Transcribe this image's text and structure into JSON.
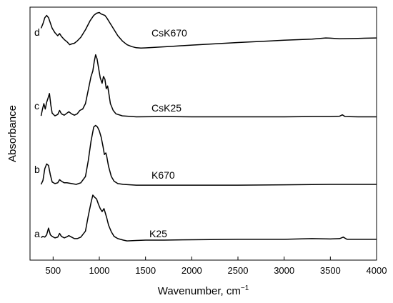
{
  "chart_data": {
    "type": "line",
    "xlabel": "Wavenumber, cm",
    "xlabel_superscript": "−1",
    "ylabel": "Absorbance",
    "xlim": [
      250,
      4000
    ],
    "y_units": "arbitrary, vertically offset spectra",
    "xticks": [
      500,
      1000,
      1500,
      2000,
      2500,
      3000,
      3500,
      4000
    ],
    "xtick_labels": [
      "500",
      "1000",
      "1500",
      "2000",
      "2500",
      "3000",
      "3500",
      "4000"
    ],
    "yticks_shown": false,
    "grid": false,
    "frame": "full box",
    "line_color": "#000000",
    "series": [
      {
        "name": "K25",
        "letter": "a",
        "points": [
          [
            370,
            0.035
          ],
          [
            390,
            0.05
          ],
          [
            410,
            0.04
          ],
          [
            430,
            0.07
          ],
          [
            450,
            0.16
          ],
          [
            470,
            0.07
          ],
          [
            490,
            0.05
          ],
          [
            520,
            0.03
          ],
          [
            550,
            0.04
          ],
          [
            570,
            0.09
          ],
          [
            590,
            0.05
          ],
          [
            620,
            0.03
          ],
          [
            650,
            0.045
          ],
          [
            670,
            0.06
          ],
          [
            700,
            0.04
          ],
          [
            730,
            0.02
          ],
          [
            760,
            0.02
          ],
          [
            800,
            0.04
          ],
          [
            850,
            0.12
          ],
          [
            880,
            0.32
          ],
          [
            910,
            0.5
          ],
          [
            930,
            0.6
          ],
          [
            950,
            0.57
          ],
          [
            970,
            0.55
          ],
          [
            990,
            0.48
          ],
          [
            1010,
            0.42
          ],
          [
            1030,
            0.38
          ],
          [
            1050,
            0.42
          ],
          [
            1060,
            0.38
          ],
          [
            1080,
            0.3
          ],
          [
            1100,
            0.2
          ],
          [
            1130,
            0.11
          ],
          [
            1160,
            0.05
          ],
          [
            1200,
            0.02
          ],
          [
            1260,
            0.0
          ],
          [
            1300,
            -0.01
          ],
          [
            1400,
            -0.005
          ],
          [
            1500,
            0.0
          ],
          [
            1700,
            0.0
          ],
          [
            2000,
            0.005
          ],
          [
            2500,
            0.01
          ],
          [
            3000,
            0.01
          ],
          [
            3300,
            0.02
          ],
          [
            3500,
            0.015
          ],
          [
            3600,
            0.02
          ],
          [
            3640,
            0.04
          ],
          [
            3680,
            0.01
          ],
          [
            3800,
            0.01
          ],
          [
            4000,
            0.01
          ]
        ]
      },
      {
        "name": "K670",
        "letter": "b",
        "points": [
          [
            370,
            0.0
          ],
          [
            390,
            0.05
          ],
          [
            410,
            0.2
          ],
          [
            430,
            0.26
          ],
          [
            450,
            0.24
          ],
          [
            470,
            0.12
          ],
          [
            490,
            0.03
          ],
          [
            520,
            0.01
          ],
          [
            550,
            0.02
          ],
          [
            570,
            0.06
          ],
          [
            590,
            0.04
          ],
          [
            620,
            0.02
          ],
          [
            650,
            0.02
          ],
          [
            700,
            0.01
          ],
          [
            750,
            0.0
          ],
          [
            800,
            0.02
          ],
          [
            850,
            0.1
          ],
          [
            880,
            0.3
          ],
          [
            910,
            0.55
          ],
          [
            940,
            0.73
          ],
          [
            960,
            0.75
          ],
          [
            980,
            0.73
          ],
          [
            1000,
            0.68
          ],
          [
            1020,
            0.6
          ],
          [
            1040,
            0.48
          ],
          [
            1055,
            0.38
          ],
          [
            1070,
            0.4
          ],
          [
            1080,
            0.36
          ],
          [
            1100,
            0.23
          ],
          [
            1130,
            0.1
          ],
          [
            1160,
            0.04
          ],
          [
            1200,
            0.01
          ],
          [
            1260,
            0.0
          ],
          [
            1400,
            -0.01
          ],
          [
            1700,
            -0.01
          ],
          [
            2500,
            -0.01
          ],
          [
            3000,
            -0.005
          ],
          [
            3500,
            0.0
          ],
          [
            3800,
            0.0
          ],
          [
            4000,
            0.0
          ]
        ]
      },
      {
        "name": "CsK25",
        "letter": "c",
        "points": [
          [
            370,
            0.02
          ],
          [
            385,
            0.12
          ],
          [
            400,
            0.2
          ],
          [
            415,
            0.12
          ],
          [
            430,
            0.22
          ],
          [
            445,
            0.28
          ],
          [
            460,
            0.35
          ],
          [
            475,
            0.18
          ],
          [
            490,
            0.06
          ],
          [
            520,
            0.02
          ],
          [
            550,
            0.04
          ],
          [
            570,
            0.1
          ],
          [
            590,
            0.05
          ],
          [
            620,
            0.03
          ],
          [
            650,
            0.06
          ],
          [
            670,
            0.08
          ],
          [
            700,
            0.05
          ],
          [
            730,
            0.03
          ],
          [
            760,
            0.05
          ],
          [
            790,
            0.1
          ],
          [
            820,
            0.12
          ],
          [
            850,
            0.2
          ],
          [
            880,
            0.4
          ],
          [
            910,
            0.6
          ],
          [
            930,
            0.68
          ],
          [
            945,
            0.82
          ],
          [
            960,
            0.92
          ],
          [
            975,
            0.86
          ],
          [
            990,
            0.74
          ],
          [
            1010,
            0.58
          ],
          [
            1030,
            0.5
          ],
          [
            1045,
            0.6
          ],
          [
            1060,
            0.56
          ],
          [
            1075,
            0.42
          ],
          [
            1090,
            0.46
          ],
          [
            1100,
            0.38
          ],
          [
            1120,
            0.2
          ],
          [
            1150,
            0.1
          ],
          [
            1180,
            0.05
          ],
          [
            1250,
            0.02
          ],
          [
            1400,
            0.005
          ],
          [
            1700,
            0.01
          ],
          [
            2000,
            0.005
          ],
          [
            2500,
            0.005
          ],
          [
            3000,
            0.005
          ],
          [
            3300,
            0.01
          ],
          [
            3500,
            0.01
          ],
          [
            3600,
            0.015
          ],
          [
            3630,
            0.035
          ],
          [
            3660,
            0.01
          ],
          [
            3800,
            0.005
          ],
          [
            4000,
            0.005
          ]
        ]
      },
      {
        "name": "CsK670",
        "letter": "d",
        "points": [
          [
            370,
            0.5
          ],
          [
            390,
            0.56
          ],
          [
            410,
            0.64
          ],
          [
            430,
            0.67
          ],
          [
            450,
            0.64
          ],
          [
            470,
            0.57
          ],
          [
            490,
            0.5
          ],
          [
            520,
            0.44
          ],
          [
            550,
            0.4
          ],
          [
            570,
            0.43
          ],
          [
            590,
            0.39
          ],
          [
            620,
            0.35
          ],
          [
            650,
            0.32
          ],
          [
            680,
            0.28
          ],
          [
            700,
            0.29
          ],
          [
            730,
            0.3
          ],
          [
            760,
            0.33
          ],
          [
            800,
            0.38
          ],
          [
            850,
            0.48
          ],
          [
            900,
            0.6
          ],
          [
            940,
            0.67
          ],
          [
            970,
            0.7
          ],
          [
            1000,
            0.71
          ],
          [
            1020,
            0.69
          ],
          [
            1040,
            0.68
          ],
          [
            1060,
            0.67
          ],
          [
            1080,
            0.64
          ],
          [
            1100,
            0.6
          ],
          [
            1150,
            0.5
          ],
          [
            1200,
            0.4
          ],
          [
            1250,
            0.33
          ],
          [
            1300,
            0.28
          ],
          [
            1350,
            0.255
          ],
          [
            1400,
            0.24
          ],
          [
            1450,
            0.235
          ],
          [
            1500,
            0.238
          ],
          [
            1600,
            0.245
          ],
          [
            1800,
            0.26
          ],
          [
            2000,
            0.275
          ],
          [
            2500,
            0.31
          ],
          [
            3000,
            0.34
          ],
          [
            3300,
            0.355
          ],
          [
            3450,
            0.37
          ],
          [
            3500,
            0.368
          ],
          [
            3600,
            0.36
          ],
          [
            3800,
            0.365
          ],
          [
            4000,
            0.37
          ]
        ]
      }
    ]
  }
}
